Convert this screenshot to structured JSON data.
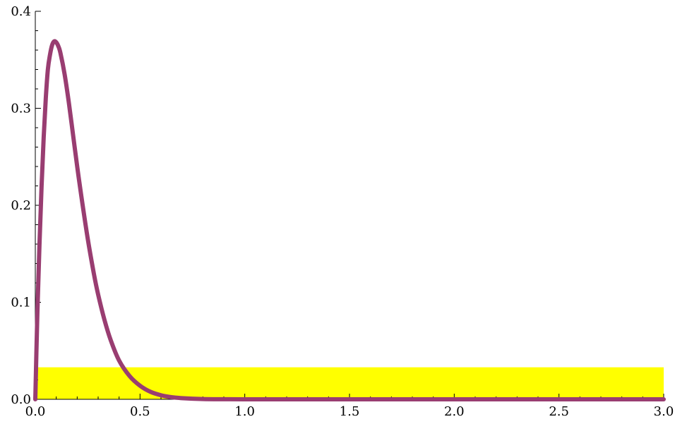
{
  "chart_data": {
    "type": "line",
    "title": "",
    "xlabel": "",
    "ylabel": "",
    "xlim": [
      0,
      3
    ],
    "ylim": [
      0,
      0.4
    ],
    "grid": false,
    "x_ticks": [
      "0.0",
      "0.5",
      "1.0",
      "1.5",
      "2.0",
      "2.5",
      "3.0"
    ],
    "x_tick_values": [
      0,
      0.5,
      1.0,
      1.5,
      2.0,
      2.5,
      3.0
    ],
    "y_ticks": [
      "0.0",
      "0.1",
      "0.2",
      "0.3",
      "0.4"
    ],
    "y_tick_values": [
      0,
      0.1,
      0.2,
      0.3,
      0.4
    ],
    "x_minor_step": 0.1,
    "y_minor_step": 0.02,
    "band": {
      "x_start": 0,
      "x_end": 3.0,
      "y_start": 0,
      "y_end": 0.033,
      "color": "#ffff00"
    },
    "series": [
      {
        "color": "#993d71",
        "x": [
          0,
          0.01,
          0.02,
          0.03,
          0.04,
          0.05,
          0.06,
          0.07,
          0.08,
          0.09,
          0.1,
          0.11,
          0.12,
          0.14,
          0.16,
          0.18,
          0.2,
          0.22,
          0.25,
          0.28,
          0.3,
          0.33,
          0.36,
          0.4,
          0.45,
          0.5,
          0.55,
          0.6,
          0.65,
          0.7,
          0.8,
          0.9,
          1.0,
          1.2,
          1.5,
          2.0,
          2.5,
          3.0
        ],
        "y": [
          0,
          0.09,
          0.16,
          0.22,
          0.27,
          0.31,
          0.34,
          0.355,
          0.365,
          0.369,
          0.368,
          0.364,
          0.357,
          0.335,
          0.306,
          0.273,
          0.24,
          0.209,
          0.166,
          0.129,
          0.108,
          0.082,
          0.061,
          0.04,
          0.024,
          0.014,
          0.0077,
          0.0042,
          0.0022,
          0.0012,
          0.0003,
          0.0001,
          3e-05,
          0,
          0,
          0,
          0,
          0
        ]
      }
    ]
  }
}
